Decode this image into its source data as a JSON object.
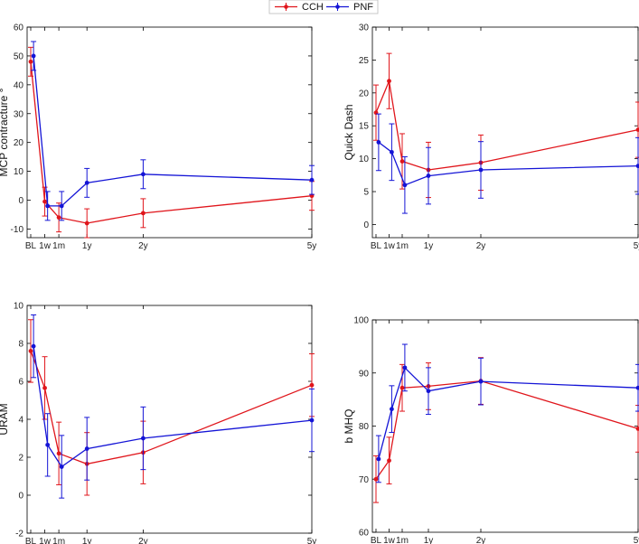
{
  "legend": {
    "entries": [
      {
        "label": "CCH",
        "color": "#e0151b"
      },
      {
        "label": "PNF",
        "color": "#1414d6"
      }
    ]
  },
  "chart_data": [
    {
      "type": "line",
      "ylabel": "MCP contracture °",
      "xlabel": "",
      "ylim": [
        -13,
        60
      ],
      "yticks": [
        -10,
        0,
        10,
        20,
        30,
        40,
        50,
        60
      ],
      "xticks": [
        {
          "x": 0,
          "label": "BL"
        },
        {
          "x": 0.25,
          "label": "1w"
        },
        {
          "x": 0.5,
          "label": "1m"
        },
        {
          "x": 1,
          "label": "1y"
        },
        {
          "x": 2,
          "label": "2y"
        },
        {
          "x": 5,
          "label": "5y"
        }
      ],
      "series": [
        {
          "name": "CCH",
          "color": "#e0151b",
          "x": [
            0,
            0.25,
            0.5,
            1,
            2,
            5
          ],
          "y": [
            48,
            -0.5,
            -6,
            -8,
            -4.5,
            1.5
          ],
          "err": [
            5,
            5,
            5,
            5,
            5,
            5
          ]
        },
        {
          "name": "PNF",
          "color": "#1414d6",
          "x": [
            0.05,
            0.3,
            0.55,
            1,
            2,
            5
          ],
          "y": [
            50,
            -2,
            -2,
            6,
            9,
            7
          ],
          "err": [
            5,
            5,
            5,
            5,
            5,
            5
          ]
        }
      ]
    },
    {
      "type": "line",
      "ylabel": "Quick Dash",
      "xlabel": "",
      "ylim": [
        -2,
        30
      ],
      "yticks": [
        0,
        5,
        10,
        15,
        20,
        25,
        30
      ],
      "xticks": [
        {
          "x": 0,
          "label": "BL"
        },
        {
          "x": 0.25,
          "label": "1w"
        },
        {
          "x": 0.5,
          "label": "1m"
        },
        {
          "x": 1,
          "label": "1y"
        },
        {
          "x": 2,
          "label": "2y"
        },
        {
          "x": 5,
          "label": "5y"
        }
      ],
      "series": [
        {
          "name": "CCH",
          "color": "#e0151b",
          "x": [
            0,
            0.25,
            0.5,
            1,
            2,
            5
          ],
          "y": [
            17,
            21.8,
            9.6,
            8.3,
            9.4,
            14.4
          ],
          "err": [
            4.2,
            4.2,
            4.2,
            4.2,
            4.2,
            4.2
          ]
        },
        {
          "name": "PNF",
          "color": "#1414d6",
          "x": [
            0.05,
            0.3,
            0.55,
            1,
            2,
            5
          ],
          "y": [
            12.5,
            11,
            6,
            7.4,
            8.3,
            8.9
          ],
          "err": [
            4.3,
            4.3,
            4.3,
            4.3,
            4.3,
            4.3
          ]
        }
      ]
    },
    {
      "type": "line",
      "ylabel": "URAM",
      "xlabel": "",
      "ylim": [
        -2,
        10
      ],
      "yticks": [
        -2,
        0,
        2,
        4,
        6,
        8,
        10
      ],
      "xticks": [
        {
          "x": 0,
          "label": "BL"
        },
        {
          "x": 0.25,
          "label": "1w"
        },
        {
          "x": 0.5,
          "label": "1m"
        },
        {
          "x": 1,
          "label": "1y"
        },
        {
          "x": 2,
          "label": "2y"
        },
        {
          "x": 5,
          "label": "5y"
        }
      ],
      "series": [
        {
          "name": "CCH",
          "color": "#e0151b",
          "x": [
            0,
            0.25,
            0.5,
            1,
            2,
            5
          ],
          "y": [
            7.6,
            5.65,
            2.2,
            1.65,
            2.25,
            5.8
          ],
          "err": [
            1.65,
            1.65,
            1.65,
            1.65,
            1.65,
            1.65
          ]
        },
        {
          "name": "PNF",
          "color": "#1414d6",
          "x": [
            0.05,
            0.3,
            0.55,
            1,
            2,
            5
          ],
          "y": [
            7.85,
            2.65,
            1.5,
            2.45,
            3,
            3.95
          ],
          "err": [
            1.65,
            1.65,
            1.65,
            1.65,
            1.65,
            1.65
          ]
        }
      ]
    },
    {
      "type": "line",
      "ylabel": "b MHQ",
      "xlabel": "",
      "ylim": [
        60,
        100
      ],
      "yticks": [
        60,
        70,
        80,
        90,
        100
      ],
      "xticks": [
        {
          "x": 0,
          "label": "BL"
        },
        {
          "x": 0.25,
          "label": "1w"
        },
        {
          "x": 0.5,
          "label": "1m"
        },
        {
          "x": 1,
          "label": "1y"
        },
        {
          "x": 2,
          "label": "2y"
        },
        {
          "x": 5,
          "label": "5y"
        }
      ],
      "series": [
        {
          "name": "CCH",
          "color": "#e0151b",
          "x": [
            0,
            0.25,
            0.5,
            1,
            2,
            5
          ],
          "y": [
            70,
            73.5,
            87.2,
            87.5,
            88.5,
            79.5
          ],
          "err": [
            4.4,
            4.4,
            4.4,
            4.4,
            4.4,
            4.4
          ]
        },
        {
          "name": "PNF",
          "color": "#1414d6",
          "x": [
            0.05,
            0.3,
            0.55,
            1,
            2,
            5
          ],
          "y": [
            73.8,
            83.2,
            91,
            86.6,
            88.4,
            87.2
          ],
          "err": [
            4.4,
            4.4,
            4.4,
            4.4,
            4.4,
            4.4
          ]
        }
      ]
    }
  ]
}
